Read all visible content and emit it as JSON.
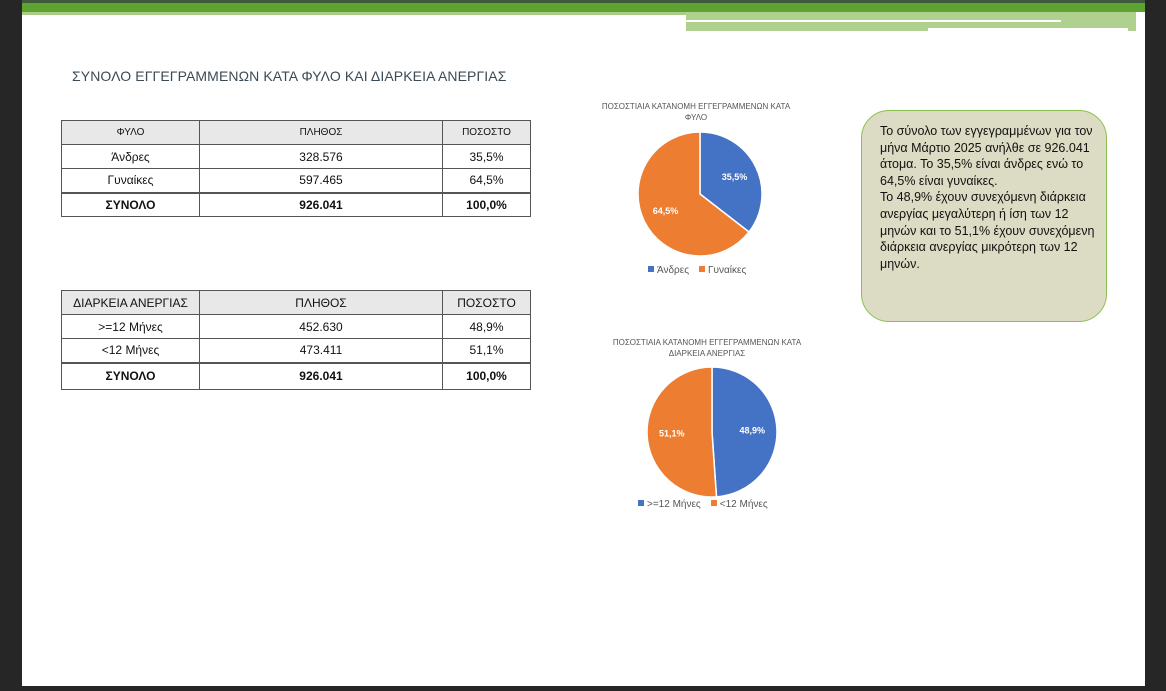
{
  "title": "ΣΥΝΟΛΟ ΕΓΓΕΓΡΑΜΜΕΝΩΝ  ΚΑΤΑ ΦΥΛΟ ΚΑΙ ΔΙΑΡΚΕΙΑ ΑΝΕΡΓΙΑΣ",
  "table_gender": {
    "headers": [
      "ΦΥΛΟ",
      "ΠΛΗΘΟΣ",
      "ΠΟΣΟΣΤΟ"
    ],
    "rows": [
      [
        "Άνδρες",
        "328.576",
        "35,5%"
      ],
      [
        "Γυναίκες",
        "597.465",
        "64,5%"
      ]
    ],
    "total": [
      "ΣΥΝΟΛΟ",
      "926.041",
      "100,0%"
    ]
  },
  "table_duration": {
    "headers": [
      "ΔΙΑΡΚΕΙΑ ΑΝΕΡΓΙΑΣ",
      "ΠΛΗΘΟΣ",
      "ΠΟΣΟΣΤΟ"
    ],
    "rows": [
      [
        ">=12 Μήνες",
        "452.630",
        "48,9%"
      ],
      [
        "<12 Μήνες",
        "473.411",
        "51,1%"
      ]
    ],
    "total": [
      "ΣΥΝΟΛΟ",
      "926.041",
      "100,0%"
    ]
  },
  "note": "Το σύνολο των εγγεγραμμένων για τον μήνα Μάρτιο 2025 ανήλθε σε 926.041 άτομα. Το 35,5% είναι άνδρες ενώ το 64,5%  είναι γυναίκες.\nΤο 48,9% έχουν συνεχόμενη διάρκεια ανεργίας μεγαλύτερη ή ίση των 12 μηνών και το 51,1% έχουν συνεχόμενη διάρκεια ανεργίας μικρότερη των 12 μηνών.",
  "chart_data": [
    {
      "type": "pie",
      "title": "ΠΟΣΟΣΤΙΑΙΑ ΚΑΤΑΝΟΜΗ ΕΓΓΕΓΡΑΜΜΕΝΩΝ ΚΑΤΑ ΦΥΛΟ",
      "categories": [
        "Άνδρες",
        "Γυναίκες"
      ],
      "values": [
        35.5,
        64.5
      ],
      "labels": [
        "35,5%",
        "64,5%"
      ],
      "colors": [
        "#4472c4",
        "#ed7d31"
      ],
      "legend": "bottom"
    },
    {
      "type": "pie",
      "title": "ΠΟΣΟΣΤΙΑΙΑ ΚΑΤΑΝΟΜΗ ΕΓΓΕΓΡΑΜΜΕΝΩΝ ΚΑΤΑ ΔΙΑΡΚΕΙΑ ΑΝΕΡΓΙΑΣ",
      "categories": [
        ">=12 Μήνες",
        "<12 Μήνες"
      ],
      "values": [
        48.9,
        51.1
      ],
      "labels": [
        "48,9%",
        "51,1%"
      ],
      "colors": [
        "#4472c4",
        "#ed7d31"
      ],
      "legend": "bottom"
    }
  ]
}
